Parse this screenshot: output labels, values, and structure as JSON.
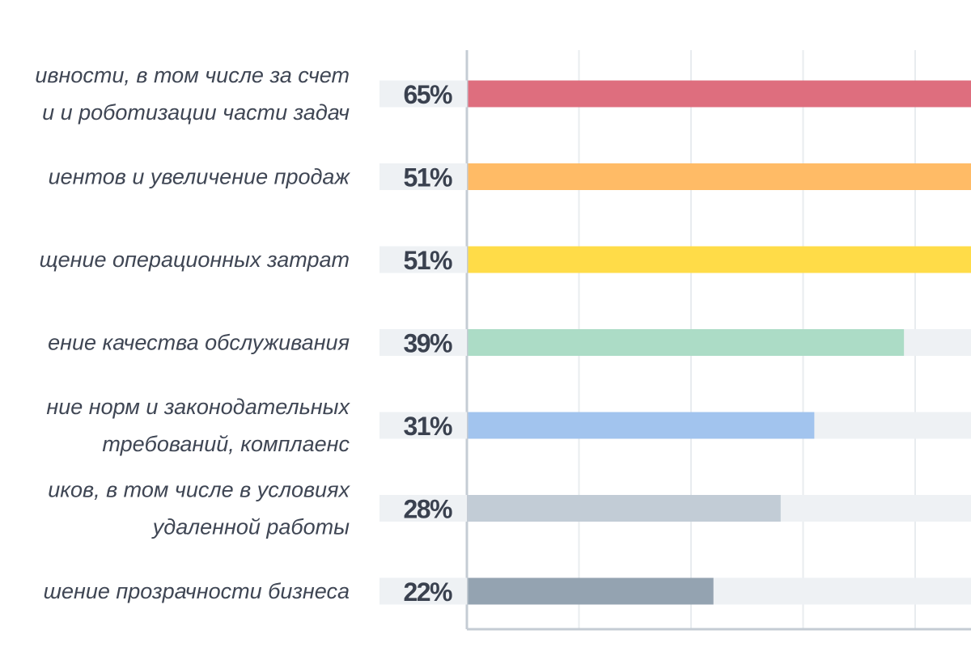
{
  "chart_data": {
    "type": "bar",
    "orientation": "horizontal",
    "categories": [
      [
        "ивности, в том числе за счет",
        "и и роботизации части задач"
      ],
      [
        "иентов и увеличение продаж"
      ],
      [
        "щение операционных затрат"
      ],
      [
        "ение качества обслуживания"
      ],
      [
        "ние норм и законодательных",
        "требований, комплаенс"
      ],
      [
        "иков, в том числе в условиях",
        "удаленной работы"
      ],
      [
        "шение прозрачности бизнеса"
      ]
    ],
    "values": [
      65,
      51,
      51,
      39,
      31,
      28,
      22
    ],
    "value_labels": [
      "65%",
      "51%",
      "51%",
      "39%",
      "31%",
      "28%",
      "22%"
    ],
    "unit": "%",
    "xlim": [
      0,
      45
    ],
    "grid": true,
    "legend": "none",
    "colors": {
      "bars": [
        "#de6e7e",
        "#ffbb66",
        "#ffdc48",
        "#acdcc6",
        "#a2c4ee",
        "#c2ccd6",
        "#94a3b1"
      ],
      "track": "#eef1f4",
      "label_bg": "#eef1f4",
      "axis": "#c5ccd4",
      "grid": "#e8ecef"
    }
  }
}
